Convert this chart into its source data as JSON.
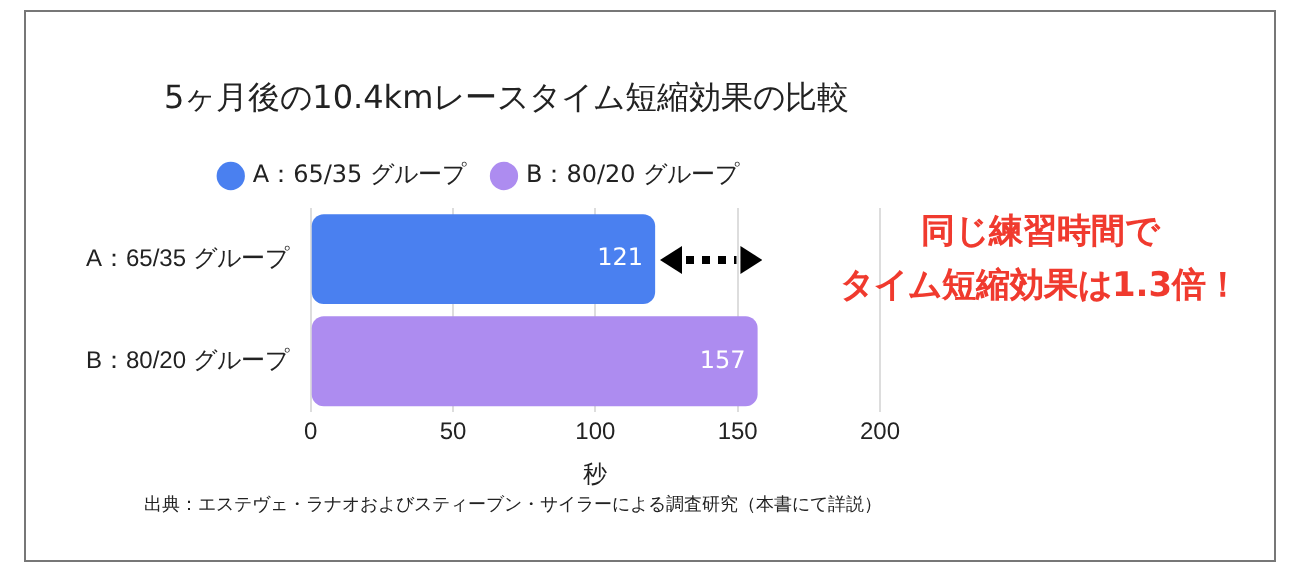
{
  "chart_data": {
    "type": "bar",
    "orientation": "horizontal",
    "title": "5ヶ月後の10.4kmレースタイム短縮効果の比較",
    "categories": [
      "A：65/35 グループ",
      "B：80/20 グループ"
    ],
    "series": [
      {
        "name": "A：65/35 グループ",
        "color": "#4a80f0",
        "values": [
          121,
          null
        ]
      },
      {
        "name": "B：80/20 グループ",
        "color": "#ad8cf0",
        "values": [
          null,
          157
        ]
      }
    ],
    "xlabel": "秒",
    "xlim": [
      0,
      200
    ],
    "xticks": [
      0,
      50,
      100,
      150,
      200
    ],
    "grid": "x",
    "legend": "top",
    "data_labels": true,
    "annotations": [
      "同じ練習時間で",
      "タイム短縮効果は1.3倍！",
      "出典：エステヴェ・ラナオおよびスティーブン・サイラーによる調査研究（本書にて詳説）"
    ]
  }
}
